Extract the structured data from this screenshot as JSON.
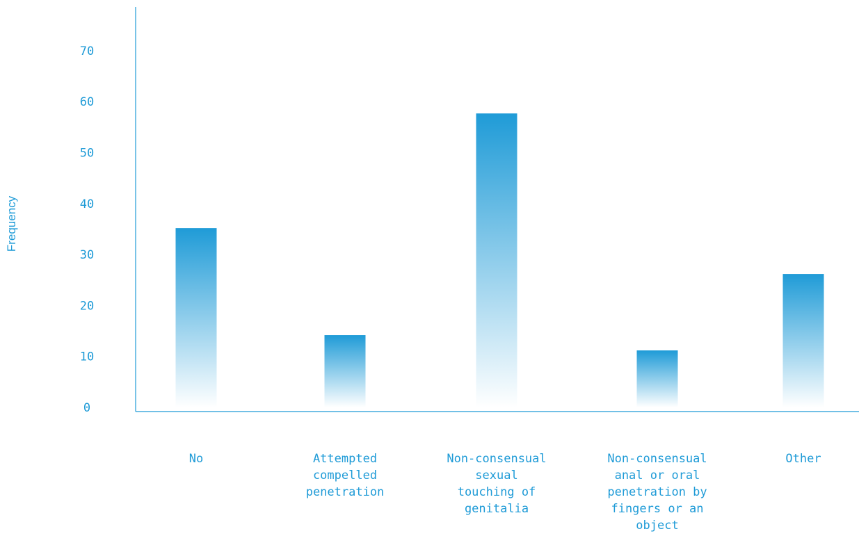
{
  "chart_data": {
    "type": "bar",
    "title": "",
    "xlabel": "",
    "ylabel": "Frequency",
    "categories": [
      "No",
      "Attempted compelled penetration",
      "Non-consensual sexual touching of genitalia",
      "Non-consensual anal or oral penetration by fingers or an object",
      "Other"
    ],
    "category_label_lines": [
      [
        "No"
      ],
      [
        "Attempted",
        "compelled",
        "penetration"
      ],
      [
        "Non-consensual",
        "sexual",
        "touching of",
        "genitalia"
      ],
      [
        "Non-consensual",
        "anal or oral",
        "penetration by",
        "fingers or an",
        "object"
      ],
      [
        "Other"
      ]
    ],
    "values": [
      36,
      15,
      58.5,
      12,
      27
    ],
    "ylim": [
      0,
      78
    ],
    "yticks": [
      0,
      10,
      20,
      30,
      40,
      50,
      60,
      70
    ],
    "grid": false,
    "legend": "none"
  },
  "colors": {
    "bar_top": "#1f9bd7",
    "bar_bottom": "#ffffff",
    "axis": "#1f9bd7",
    "text": "#1f9bd7"
  }
}
